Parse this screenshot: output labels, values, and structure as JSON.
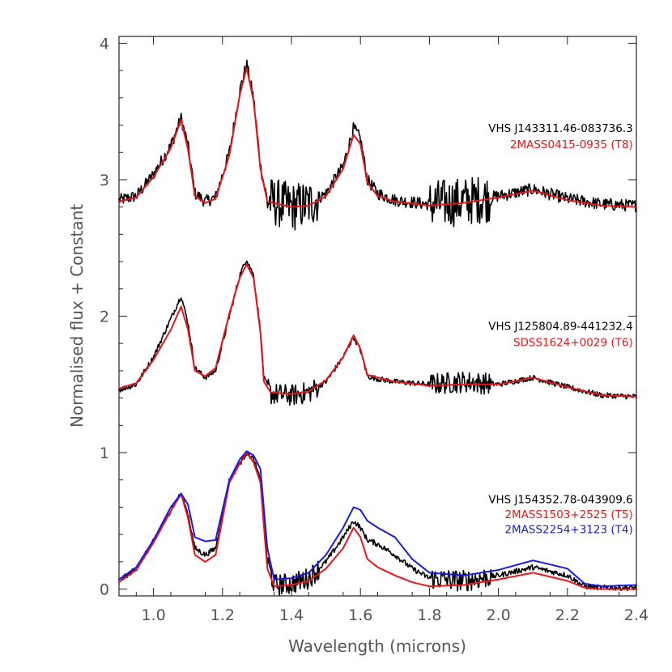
{
  "chart_data": {
    "type": "line",
    "title": "",
    "xlabel": "Wavelength (microns)",
    "ylabel": "Normalised flux + Constant",
    "xlim": [
      0.9,
      2.4
    ],
    "ylim": [
      -0.05,
      4.05
    ],
    "xticks": [
      "1.0",
      "1.2",
      "1.4",
      "1.6",
      "1.8",
      "2.0",
      "2.2",
      "2.4"
    ],
    "yticks": [
      "0",
      "1",
      "2",
      "3",
      "4"
    ],
    "colors": {
      "observed": "#000000",
      "red_template": "#e8151b",
      "blue_template": "#1a1ae6"
    },
    "series": [
      {
        "name": "VHS J143311.46-083736.3",
        "color": "#000000",
        "offset": 2.8,
        "noise": 0.045,
        "points": [
          [
            0.9,
            2.85
          ],
          [
            0.95,
            2.88
          ],
          [
            1.0,
            3.04
          ],
          [
            1.05,
            3.25
          ],
          [
            1.08,
            3.45
          ],
          [
            1.1,
            3.25
          ],
          [
            1.12,
            2.9
          ],
          [
            1.15,
            2.84
          ],
          [
            1.18,
            2.87
          ],
          [
            1.22,
            3.2
          ],
          [
            1.25,
            3.65
          ],
          [
            1.27,
            3.85
          ],
          [
            1.29,
            3.6
          ],
          [
            1.31,
            3.1
          ],
          [
            1.33,
            2.85
          ],
          [
            1.4,
            2.8
          ],
          [
            1.45,
            2.82
          ],
          [
            1.5,
            2.9
          ],
          [
            1.55,
            3.1
          ],
          [
            1.58,
            3.38
          ],
          [
            1.6,
            3.3
          ],
          [
            1.62,
            3.0
          ],
          [
            1.65,
            2.9
          ],
          [
            1.7,
            2.85
          ],
          [
            1.8,
            2.82
          ],
          [
            1.9,
            2.84
          ],
          [
            2.0,
            2.88
          ],
          [
            2.1,
            2.93
          ],
          [
            2.2,
            2.86
          ],
          [
            2.3,
            2.82
          ],
          [
            2.4,
            2.81
          ]
        ]
      },
      {
        "name": "2MASS0415-0935 (T8)",
        "color": "#e8151b",
        "offset": 2.8,
        "noise": 0,
        "points": [
          [
            0.9,
            2.84
          ],
          [
            0.95,
            2.87
          ],
          [
            1.0,
            3.02
          ],
          [
            1.05,
            3.23
          ],
          [
            1.08,
            3.44
          ],
          [
            1.1,
            3.22
          ],
          [
            1.12,
            2.88
          ],
          [
            1.15,
            2.83
          ],
          [
            1.18,
            2.86
          ],
          [
            1.22,
            3.18
          ],
          [
            1.25,
            3.62
          ],
          [
            1.27,
            3.82
          ],
          [
            1.29,
            3.58
          ],
          [
            1.31,
            3.08
          ],
          [
            1.33,
            2.84
          ],
          [
            1.4,
            2.8
          ],
          [
            1.45,
            2.81
          ],
          [
            1.5,
            2.88
          ],
          [
            1.55,
            3.08
          ],
          [
            1.58,
            3.33
          ],
          [
            1.6,
            3.26
          ],
          [
            1.62,
            2.98
          ],
          [
            1.65,
            2.88
          ],
          [
            1.7,
            2.84
          ],
          [
            1.8,
            2.81
          ],
          [
            1.9,
            2.83
          ],
          [
            2.0,
            2.87
          ],
          [
            2.1,
            2.92
          ],
          [
            2.2,
            2.85
          ],
          [
            2.3,
            2.81
          ],
          [
            2.4,
            2.8
          ]
        ]
      },
      {
        "name": "VHS J125804.89-441232.4",
        "color": "#000000",
        "offset": 1.4,
        "noise": 0.02,
        "points": [
          [
            0.9,
            1.46
          ],
          [
            0.95,
            1.5
          ],
          [
            1.0,
            1.7
          ],
          [
            1.05,
            1.98
          ],
          [
            1.08,
            2.15
          ],
          [
            1.1,
            1.95
          ],
          [
            1.12,
            1.62
          ],
          [
            1.15,
            1.55
          ],
          [
            1.18,
            1.6
          ],
          [
            1.22,
            2.0
          ],
          [
            1.25,
            2.3
          ],
          [
            1.27,
            2.42
          ],
          [
            1.29,
            2.3
          ],
          [
            1.31,
            1.9
          ],
          [
            1.32,
            1.55
          ],
          [
            1.34,
            1.43
          ],
          [
            1.4,
            1.42
          ],
          [
            1.45,
            1.44
          ],
          [
            1.5,
            1.52
          ],
          [
            1.55,
            1.7
          ],
          [
            1.58,
            1.85
          ],
          [
            1.6,
            1.75
          ],
          [
            1.62,
            1.56
          ],
          [
            1.65,
            1.54
          ],
          [
            1.7,
            1.52
          ],
          [
            1.8,
            1.5
          ],
          [
            1.9,
            1.52
          ],
          [
            2.0,
            1.5
          ],
          [
            2.1,
            1.55
          ],
          [
            2.2,
            1.48
          ],
          [
            2.3,
            1.42
          ],
          [
            2.4,
            1.41
          ]
        ]
      },
      {
        "name": "SDSS1624+0029 (T6)",
        "color": "#e8151b",
        "offset": 1.4,
        "noise": 0,
        "points": [
          [
            0.9,
            1.47
          ],
          [
            0.95,
            1.51
          ],
          [
            1.0,
            1.68
          ],
          [
            1.05,
            1.9
          ],
          [
            1.08,
            2.07
          ],
          [
            1.1,
            1.9
          ],
          [
            1.12,
            1.6
          ],
          [
            1.15,
            1.56
          ],
          [
            1.18,
            1.62
          ],
          [
            1.22,
            2.02
          ],
          [
            1.25,
            2.28
          ],
          [
            1.27,
            2.38
          ],
          [
            1.29,
            2.28
          ],
          [
            1.31,
            1.88
          ],
          [
            1.32,
            1.52
          ],
          [
            1.34,
            1.44
          ],
          [
            1.4,
            1.43
          ],
          [
            1.45,
            1.45
          ],
          [
            1.5,
            1.53
          ],
          [
            1.55,
            1.7
          ],
          [
            1.58,
            1.86
          ],
          [
            1.6,
            1.76
          ],
          [
            1.62,
            1.57
          ],
          [
            1.65,
            1.55
          ],
          [
            1.7,
            1.52
          ],
          [
            1.8,
            1.49
          ],
          [
            1.9,
            1.5
          ],
          [
            2.0,
            1.5
          ],
          [
            2.1,
            1.55
          ],
          [
            2.2,
            1.48
          ],
          [
            2.3,
            1.42
          ],
          [
            2.4,
            1.41
          ]
        ]
      },
      {
        "name": "VHS J154352.78-043909.6",
        "color": "#000000",
        "offset": 0,
        "noise": 0.02,
        "points": [
          [
            0.9,
            0.06
          ],
          [
            0.95,
            0.15
          ],
          [
            1.0,
            0.35
          ],
          [
            1.05,
            0.58
          ],
          [
            1.08,
            0.7
          ],
          [
            1.1,
            0.55
          ],
          [
            1.12,
            0.3
          ],
          [
            1.15,
            0.25
          ],
          [
            1.18,
            0.3
          ],
          [
            1.22,
            0.8
          ],
          [
            1.25,
            0.92
          ],
          [
            1.27,
            1.0
          ],
          [
            1.29,
            0.95
          ],
          [
            1.31,
            0.8
          ],
          [
            1.33,
            0.2
          ],
          [
            1.35,
            0.03
          ],
          [
            1.4,
            0.04
          ],
          [
            1.45,
            0.08
          ],
          [
            1.5,
            0.2
          ],
          [
            1.55,
            0.38
          ],
          [
            1.58,
            0.5
          ],
          [
            1.6,
            0.45
          ],
          [
            1.62,
            0.36
          ],
          [
            1.65,
            0.33
          ],
          [
            1.7,
            0.25
          ],
          [
            1.75,
            0.15
          ],
          [
            1.8,
            0.08
          ],
          [
            1.9,
            0.06
          ],
          [
            2.0,
            0.1
          ],
          [
            2.1,
            0.16
          ],
          [
            2.2,
            0.1
          ],
          [
            2.25,
            0.02
          ],
          [
            2.3,
            0.01
          ],
          [
            2.4,
            0.01
          ]
        ]
      },
      {
        "name": "2MASS1503+2525 (T5)",
        "color": "#e8151b",
        "offset": 0,
        "noise": 0,
        "points": [
          [
            0.9,
            0.05
          ],
          [
            0.95,
            0.14
          ],
          [
            1.0,
            0.34
          ],
          [
            1.05,
            0.57
          ],
          [
            1.08,
            0.7
          ],
          [
            1.1,
            0.52
          ],
          [
            1.12,
            0.25
          ],
          [
            1.15,
            0.2
          ],
          [
            1.18,
            0.25
          ],
          [
            1.22,
            0.78
          ],
          [
            1.25,
            0.92
          ],
          [
            1.27,
            1.0
          ],
          [
            1.29,
            0.93
          ],
          [
            1.31,
            0.78
          ],
          [
            1.33,
            0.15
          ],
          [
            1.35,
            0.02
          ],
          [
            1.4,
            0.03
          ],
          [
            1.45,
            0.06
          ],
          [
            1.5,
            0.15
          ],
          [
            1.55,
            0.3
          ],
          [
            1.58,
            0.45
          ],
          [
            1.6,
            0.38
          ],
          [
            1.62,
            0.22
          ],
          [
            1.65,
            0.16
          ],
          [
            1.7,
            0.1
          ],
          [
            1.75,
            0.05
          ],
          [
            1.8,
            0.02
          ],
          [
            1.9,
            0.03
          ],
          [
            2.0,
            0.07
          ],
          [
            2.1,
            0.12
          ],
          [
            2.2,
            0.06
          ],
          [
            2.25,
            0.01
          ],
          [
            2.3,
            0.0
          ],
          [
            2.4,
            0.0
          ]
        ]
      },
      {
        "name": "2MASS2254+3123 (T4)",
        "color": "#1a1ae6",
        "offset": 0,
        "noise": 0,
        "points": [
          [
            0.9,
            0.07
          ],
          [
            0.95,
            0.16
          ],
          [
            1.0,
            0.36
          ],
          [
            1.05,
            0.6
          ],
          [
            1.08,
            0.7
          ],
          [
            1.1,
            0.62
          ],
          [
            1.12,
            0.38
          ],
          [
            1.15,
            0.35
          ],
          [
            1.18,
            0.36
          ],
          [
            1.22,
            0.8
          ],
          [
            1.25,
            0.95
          ],
          [
            1.27,
            1.01
          ],
          [
            1.29,
            0.98
          ],
          [
            1.31,
            0.88
          ],
          [
            1.33,
            0.3
          ],
          [
            1.35,
            0.07
          ],
          [
            1.4,
            0.08
          ],
          [
            1.45,
            0.12
          ],
          [
            1.5,
            0.25
          ],
          [
            1.55,
            0.45
          ],
          [
            1.58,
            0.6
          ],
          [
            1.6,
            0.58
          ],
          [
            1.62,
            0.5
          ],
          [
            1.65,
            0.45
          ],
          [
            1.7,
            0.38
          ],
          [
            1.75,
            0.22
          ],
          [
            1.8,
            0.12
          ],
          [
            1.9,
            0.1
          ],
          [
            2.0,
            0.14
          ],
          [
            2.1,
            0.21
          ],
          [
            2.2,
            0.15
          ],
          [
            2.25,
            0.04
          ],
          [
            2.3,
            0.02
          ],
          [
            2.4,
            0.03
          ]
        ]
      }
    ],
    "annotations": [
      {
        "text": "VHS J143311.46-083736.3",
        "color": "#000000",
        "x": 2.39,
        "y": 3.35
      },
      {
        "text": "2MASS0415-0935 (T8)",
        "color": "#e8151b",
        "x": 2.39,
        "y": 3.23
      },
      {
        "text": "VHS J125804.89-441232.4",
        "color": "#000000",
        "x": 2.39,
        "y": 1.9
      },
      {
        "text": "SDSS1624+0029 (T6)",
        "color": "#e8151b",
        "x": 2.39,
        "y": 1.78
      },
      {
        "text": "VHS J154352.78-043909.6",
        "color": "#000000",
        "x": 2.39,
        "y": 0.63
      },
      {
        "text": "2MASS1503+2525 (T5)",
        "color": "#e8151b",
        "x": 2.39,
        "y": 0.52
      },
      {
        "text": "2MASS2254+3123 (T4)",
        "color": "#1a1ae6",
        "x": 2.39,
        "y": 0.41
      }
    ]
  }
}
